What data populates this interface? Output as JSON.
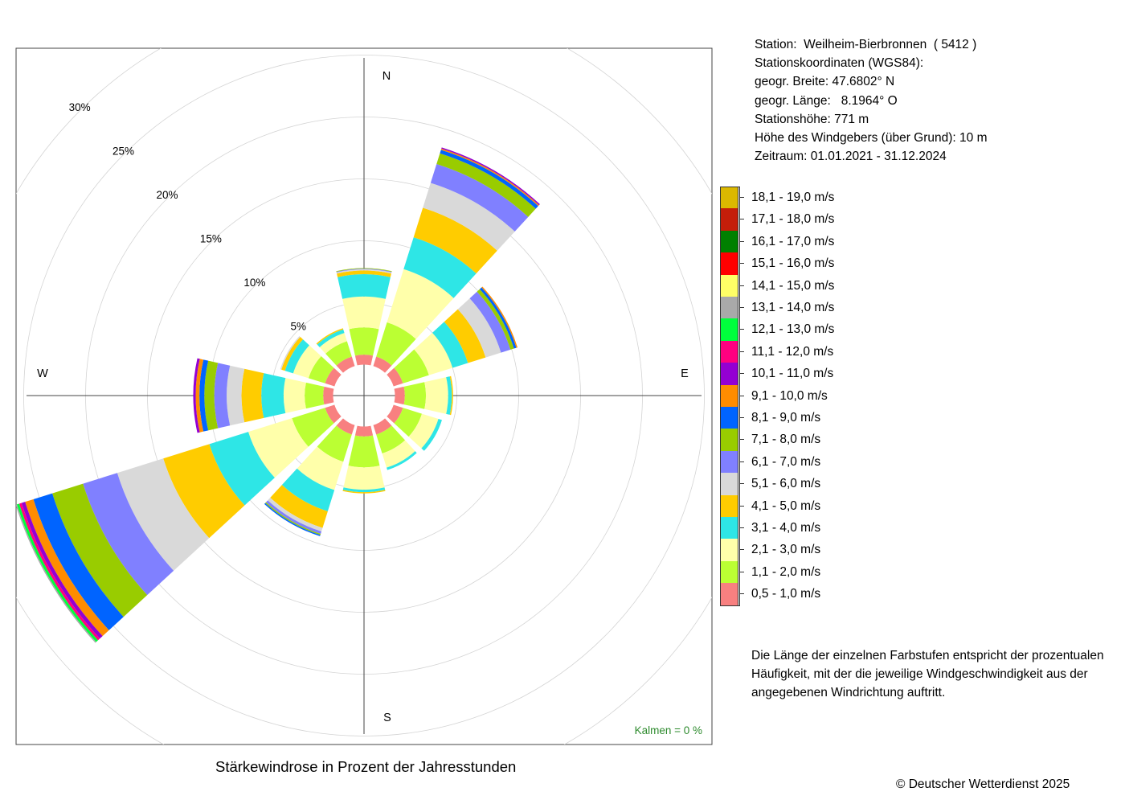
{
  "station_info": [
    "Station:  Weilheim-Bierbronnen  ( 5412 )",
    "Stationskoordinaten (WGS84):",
    "geogr. Breite: 47.6802° N",
    "geogr. Länge:   8.1964° O",
    "Stationshöhe: 771 m",
    "Höhe des Windgebers (über Grund): 10 m",
    "Zeitraum: 01.01.2021 - 31.12.2024"
  ],
  "legend": [
    {
      "label": "18,1 - 19,0 m/s",
      "color": "#dbb800"
    },
    {
      "label": "17,1 - 18,0 m/s",
      "color": "#c41e0a"
    },
    {
      "label": "16,1 - 17,0 m/s",
      "color": "#008000"
    },
    {
      "label": "15,1 - 16,0 m/s",
      "color": "#ff0000"
    },
    {
      "label": "14,1 - 15,0 m/s",
      "color": "#ffff66"
    },
    {
      "label": "13,1 - 14,0 m/s",
      "color": "#a9a9a9"
    },
    {
      "label": "12,1 - 13,0 m/s",
      "color": "#00ff3c"
    },
    {
      "label": "11,1 - 12,0 m/s",
      "color": "#ff0080"
    },
    {
      "label": "10,1 - 11,0 m/s",
      "color": "#9400d3"
    },
    {
      "label": "9,1 - 10,0 m/s",
      "color": "#ff8c00"
    },
    {
      "label": "8,1 - 9,0 m/s",
      "color": "#0064ff"
    },
    {
      "label": "7,1 - 8,0 m/s",
      "color": "#99cc00"
    },
    {
      "label": "6,1 - 7,0 m/s",
      "color": "#8080ff"
    },
    {
      "label": "5,1 - 6,0 m/s",
      "color": "#d9d9d9"
    },
    {
      "label": "4,1 - 5,0 m/s",
      "color": "#ffcc00"
    },
    {
      "label": "3,1 - 4,0 m/s",
      "color": "#2ee6e6"
    },
    {
      "label": "2,1 - 3,0 m/s",
      "color": "#ffffaa"
    },
    {
      "label": "1,1 - 2,0 m/s",
      "color": "#bbff33"
    },
    {
      "label": "0,5 - 1,0 m/s",
      "color": "#f88080"
    }
  ],
  "note": "Die Länge der einzelnen Farbstufen entspricht der prozentualen Häufigkeit, mit der die jeweilige Windgeschwindigkeit aus der angegebenen Windrichtung auftritt.",
  "caption": "Stärkewindrose in Prozent der Jahresstunden",
  "copyright": "© Deutscher Wetterdienst  2025",
  "calm_label": "Kalmen  =  0 %",
  "chart_data": {
    "type": "wind-rose",
    "unit": "%",
    "compass_labels": [
      "N",
      "E",
      "S",
      "W"
    ],
    "ring_labels": [
      "5%",
      "10%",
      "15%",
      "20%",
      "25%",
      "30%"
    ],
    "ring_values": [
      5,
      10,
      15,
      20,
      25,
      30
    ],
    "center_offset": 2.5,
    "speed_classes": [
      "0,5 - 1,0 m/s",
      "1,1 - 2,0 m/s",
      "2,1 - 3,0 m/s",
      "3,1 - 4,0 m/s",
      "4,1 - 5,0 m/s",
      "5,1 - 6,0 m/s",
      "6,1 - 7,0 m/s",
      "7,1 - 8,0 m/s",
      "8,1 - 9,0 m/s",
      "9,1 - 10,0 m/s",
      "10,1 - 11,0 m/s",
      "11,1 - 12,0 m/s",
      "12,1 - 13,0 m/s",
      "13,1 - 14,0 m/s",
      "14,1 - 15,0 m/s",
      "15,1 - 16,0 m/s",
      "16,1 - 17,0 m/s",
      "17,1 - 18,0 m/s",
      "18,1 - 19,0 m/s"
    ],
    "directions_deg": [
      0,
      30,
      60,
      90,
      120,
      150,
      180,
      210,
      240,
      270,
      300,
      330
    ],
    "values": [
      [
        0.8,
        2.2,
        2.5,
        1.8,
        0.3,
        0.1,
        0.05,
        0.05
      ],
      [
        0.8,
        2.9,
        4.5,
        2.7,
        2.5,
        2.1,
        1.6,
        0.9,
        0.3,
        0.1,
        0.1
      ],
      [
        0.8,
        2.2,
        2.0,
        1.3,
        1.5,
        1.3,
        0.8,
        0.3,
        0.2,
        0.1
      ],
      [
        0.8,
        1.7,
        1.8,
        0.3,
        0.1
      ],
      [
        0.8,
        1.6,
        1.4,
        0.3
      ],
      [
        0.8,
        1.6,
        1.2,
        0.2
      ],
      [
        0.8,
        2.5,
        1.8,
        0.2,
        0.1
      ],
      [
        0.8,
        2.3,
        2.4,
        1.8,
        1.4,
        0.3,
        0.2,
        0.1,
        0.1
      ],
      [
        0.8,
        2.8,
        3.7,
        3.3,
        3.9,
        3.9,
        2.9,
        2.6,
        1.6,
        0.7,
        0.3,
        0.2,
        0.2,
        0.1
      ],
      [
        0.8,
        1.5,
        1.7,
        1.8,
        1.6,
        1.2,
        1.0,
        0.8,
        0.4,
        0.3,
        0.2
      ],
      [
        0.8,
        1.4,
        1.3,
        0.7,
        0.3,
        0.1
      ],
      [
        0.8,
        1.3,
        0.7,
        0.3,
        0.1
      ]
    ]
  }
}
